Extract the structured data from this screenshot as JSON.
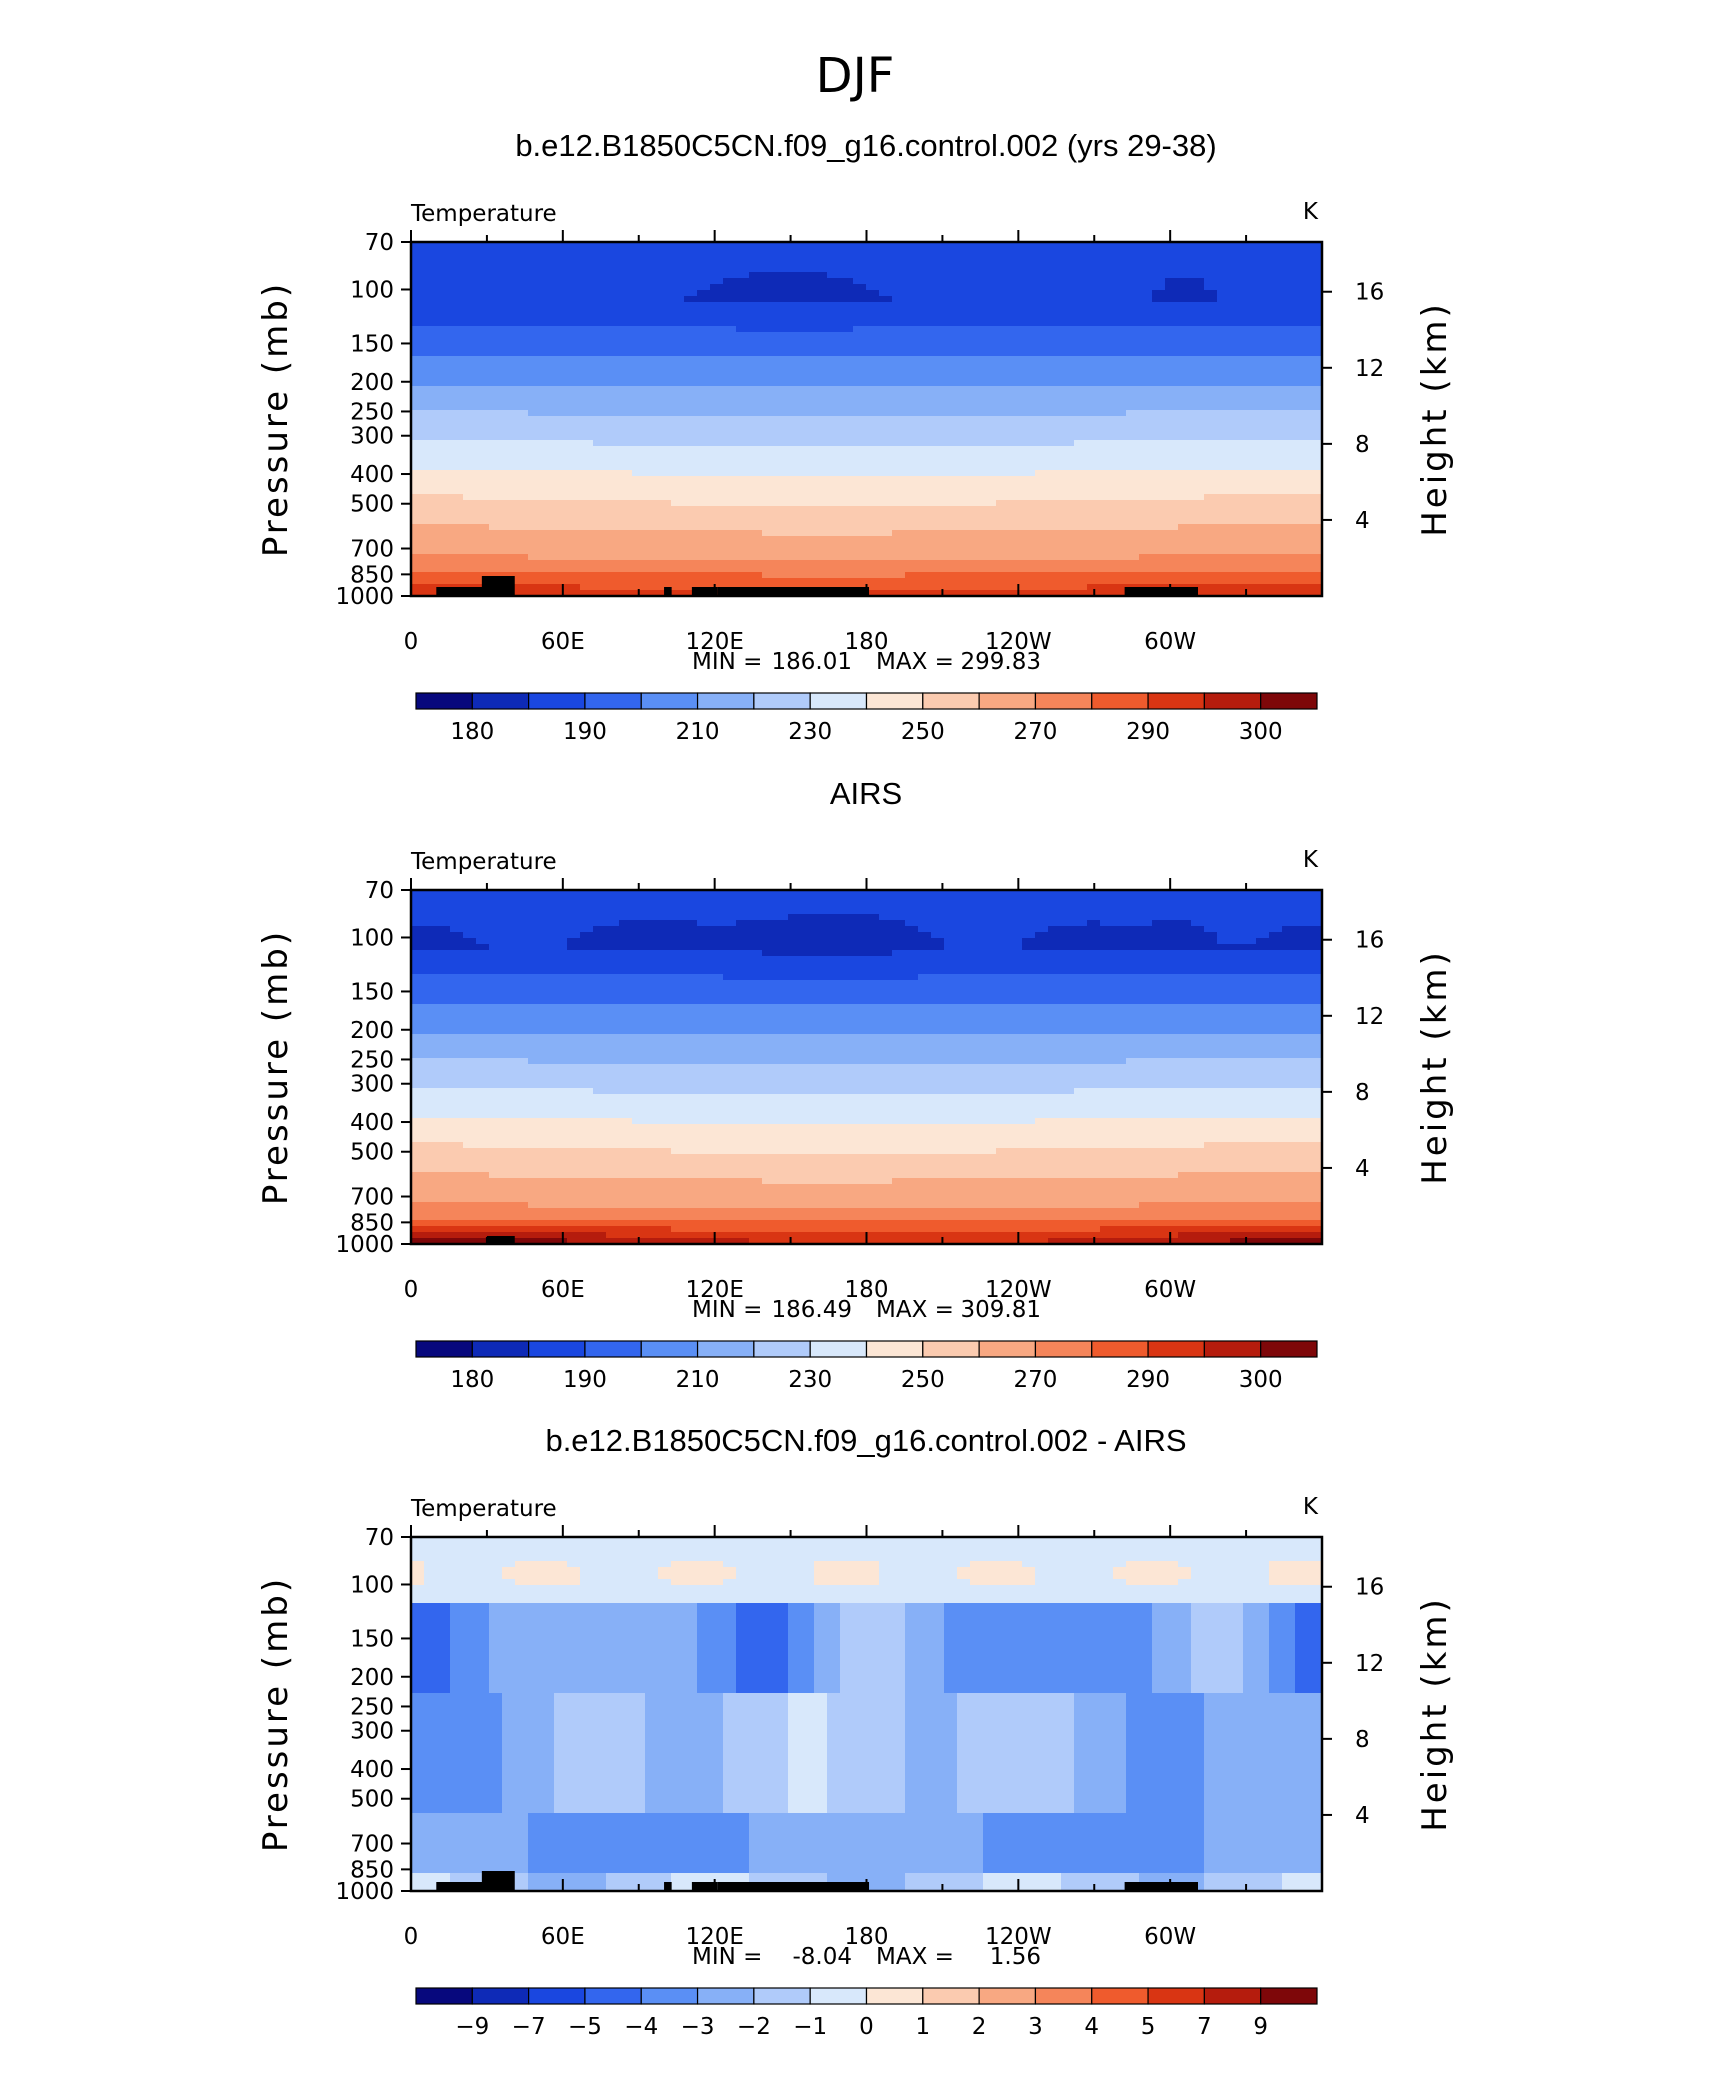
{
  "figure": {
    "main_title": "DJF"
  },
  "chart_data": [
    {
      "type": "heatmap",
      "title": "b.e12.B1850C5CN.f09_g16.control.002 (yrs 29-38)",
      "variable": "Temperature",
      "units": "K",
      "ylabel": "Pressure (mb)",
      "ylabel_right": "Height (km)",
      "pressure_ticks": [
        70,
        100,
        150,
        200,
        250,
        300,
        400,
        500,
        700,
        850,
        1000
      ],
      "height_ticks": [
        4,
        8,
        12,
        16
      ],
      "x_tick_labels": [
        "0",
        "60E",
        "120E",
        "180",
        "120W",
        "60W"
      ],
      "x_range_degrees_east": [
        0,
        360
      ],
      "y_scale": "log",
      "min_label": "MIN =",
      "max_label": "MAX =",
      "min": "186.01",
      "max": "299.83",
      "colorbar_ticks": [
        "180",
        "190",
        "210",
        "230",
        "250",
        "270",
        "290",
        "300"
      ],
      "colors": [
        "#07087d",
        "#0e2ab7",
        "#1a47e0",
        "#3366ee",
        "#5a8ff5",
        "#87b0f7",
        "#b0cbfa",
        "#d8e8fb",
        "#fce6d5",
        "#fbcbb0",
        "#f8a882",
        "#f5855a",
        "#ef5b2d",
        "#d93513",
        "#b51c0d",
        "#7e0709"
      ],
      "contour_levels": [
        185,
        190,
        200,
        210,
        220,
        230,
        240,
        250,
        260,
        270,
        280,
        285,
        290,
        295
      ]
    },
    {
      "type": "heatmap",
      "title": "AIRS",
      "variable": "Temperature",
      "units": "K",
      "ylabel": "Pressure (mb)",
      "ylabel_right": "Height (km)",
      "pressure_ticks": [
        70,
        100,
        150,
        200,
        250,
        300,
        400,
        500,
        700,
        850,
        1000
      ],
      "height_ticks": [
        4,
        8,
        12,
        16
      ],
      "x_tick_labels": [
        "0",
        "60E",
        "120E",
        "180",
        "120W",
        "60W"
      ],
      "x_range_degrees_east": [
        0,
        360
      ],
      "y_scale": "log",
      "min_label": "MIN =",
      "max_label": "MAX =",
      "min": "186.49",
      "max": "309.81",
      "colorbar_ticks": [
        "180",
        "190",
        "210",
        "230",
        "250",
        "270",
        "290",
        "300"
      ],
      "colors": [
        "#07087d",
        "#0e2ab7",
        "#1a47e0",
        "#3366ee",
        "#5a8ff5",
        "#87b0f7",
        "#b0cbfa",
        "#d8e8fb",
        "#fce6d5",
        "#fbcbb0",
        "#f8a882",
        "#f5855a",
        "#ef5b2d",
        "#d93513",
        "#b51c0d",
        "#7e0709"
      ],
      "contour_levels": [
        185,
        190,
        200,
        210,
        220,
        230,
        240,
        250,
        260,
        270,
        280,
        285,
        290,
        295,
        300
      ]
    },
    {
      "type": "heatmap",
      "title": "b.e12.B1850C5CN.f09_g16.control.002 - AIRS",
      "variable": "Temperature",
      "units": "K",
      "ylabel": "Pressure (mb)",
      "ylabel_right": "Height (km)",
      "pressure_ticks": [
        70,
        100,
        150,
        200,
        250,
        300,
        400,
        500,
        700,
        850,
        1000
      ],
      "height_ticks": [
        4,
        8,
        12,
        16
      ],
      "x_tick_labels": [
        "0",
        "60E",
        "120E",
        "180",
        "120W",
        "60W"
      ],
      "x_range_degrees_east": [
        0,
        360
      ],
      "y_scale": "log",
      "min_label": "MIN =",
      "max_label": "MAX =",
      "min": "-8.04",
      "max": "1.56",
      "colorbar_ticks": [
        "−9",
        "−7",
        "−5",
        "−4",
        "−3",
        "−2",
        "−1",
        "0",
        "1",
        "2",
        "3",
        "4",
        "5",
        "7",
        "9"
      ],
      "colors": [
        "#07087d",
        "#0e2ab7",
        "#1a47e0",
        "#3366ee",
        "#5a8ff5",
        "#87b0f7",
        "#b0cbfa",
        "#d8e8fb",
        "#fce6d5",
        "#fbcbb0",
        "#f8a882",
        "#f5855a",
        "#ef5b2d",
        "#d93513",
        "#b51c0d",
        "#7e0709"
      ]
    }
  ]
}
